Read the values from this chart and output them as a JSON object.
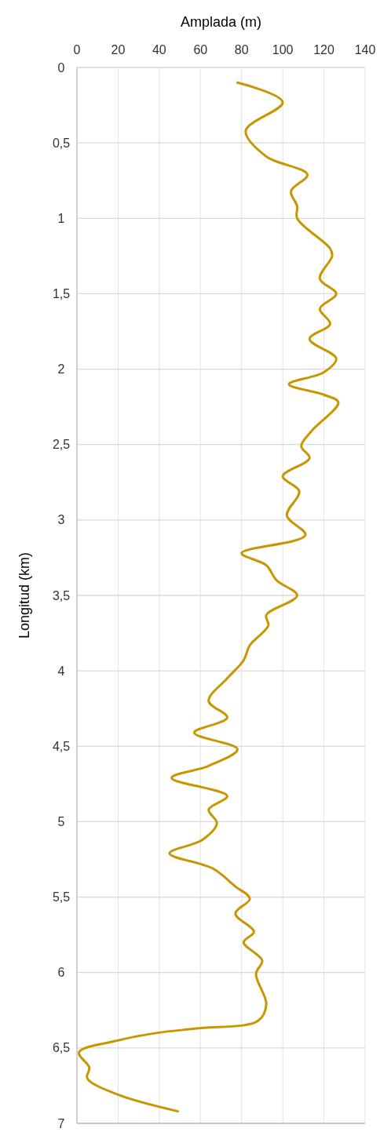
{
  "chart_data": {
    "type": "line",
    "xlabel": "Amplada (m)",
    "ylabel": "Longitud (km)",
    "xlim": [
      0,
      140
    ],
    "xticks": [
      0,
      20,
      40,
      60,
      80,
      100,
      120,
      140
    ],
    "ylim": [
      7,
      0
    ],
    "yticks": [
      0,
      {
        "value": 0.5,
        "label": "0,5"
      },
      1,
      {
        "value": 1.5,
        "label": "1,5"
      },
      2,
      {
        "value": 2.5,
        "label": "2,5"
      },
      3,
      {
        "value": 3.5,
        "label": "3,5"
      },
      4,
      {
        "value": 4.5,
        "label": "4,5"
      },
      5,
      {
        "value": 5.5,
        "label": "5,5"
      },
      6,
      {
        "value": 6.5,
        "label": "6,5"
      },
      7
    ],
    "grid": true,
    "marker": "none",
    "line_style": "solid",
    "series": [
      {
        "color": "#c89600",
        "x": [
          78,
          100,
          82,
          92,
          112,
          104,
          107,
          107,
          123,
          124,
          118,
          126,
          118,
          123,
          113,
          126,
          120,
          103,
          120,
          127,
          114,
          109,
          113,
          100,
          108,
          102,
          111,
          80,
          92,
          97,
          107,
          92,
          93,
          84,
          81,
          73,
          64,
          73,
          57,
          78,
          64,
          46,
          73,
          64,
          68,
          61,
          45,
          66,
          77,
          84,
          77,
          86,
          81,
          90,
          87,
          92,
          88,
          59,
          39,
          20,
          1,
          6,
          5,
          20,
          49
        ],
        "values": [
          0.1,
          0.23,
          0.42,
          0.59,
          0.71,
          0.82,
          0.92,
          1.0,
          1.2,
          1.25,
          1.4,
          1.5,
          1.6,
          1.7,
          1.8,
          1.93,
          2.02,
          2.1,
          2.17,
          2.22,
          2.41,
          2.51,
          2.59,
          2.71,
          2.81,
          2.97,
          3.1,
          3.22,
          3.3,
          3.4,
          3.5,
          3.63,
          3.7,
          3.83,
          3.93,
          4.05,
          4.2,
          4.31,
          4.41,
          4.52,
          4.63,
          4.71,
          4.83,
          4.92,
          5.01,
          5.12,
          5.21,
          5.31,
          5.43,
          5.51,
          5.61,
          5.73,
          5.8,
          5.92,
          6.01,
          6.21,
          6.32,
          6.37,
          6.4,
          6.45,
          6.53,
          6.63,
          6.7,
          6.81,
          6.92
        ]
      }
    ]
  }
}
